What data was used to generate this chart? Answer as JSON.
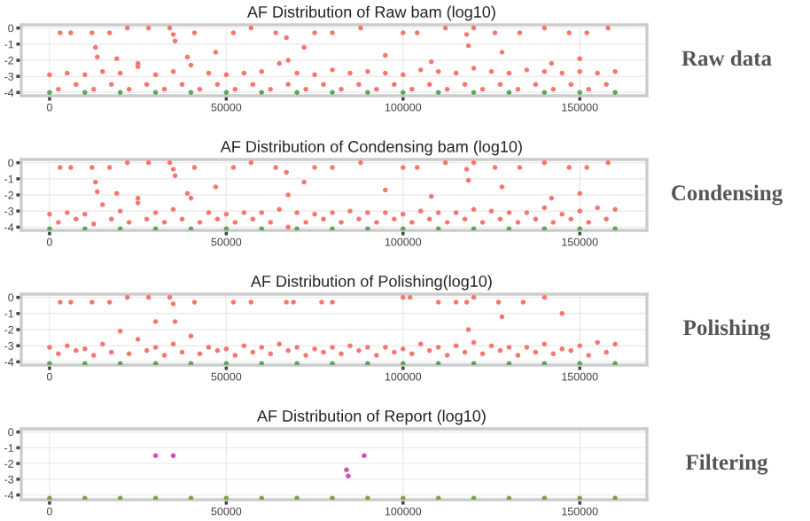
{
  "chart_data": [
    {
      "type": "scatter",
      "title": "AF Distribution of Raw bam (log10)",
      "annotations": [
        "Raw data"
      ],
      "xlim": [
        -8000,
        169000
      ],
      "ylim": [
        -4.2,
        0.2
      ],
      "xticks": [
        0,
        50000,
        100000,
        150000
      ],
      "yticks": [
        {
          "value": 0,
          "label": "0"
        },
        {
          "value": -1,
          "label": "-1"
        },
        {
          "value": -2,
          "label": "-2"
        },
        {
          "value": -3,
          "label": "-3"
        },
        {
          "value": -4,
          "label": "-4"
        }
      ],
      "grid": true,
      "marker": "circle",
      "series": [
        {
          "color": "#f8766d",
          "x": [
            0,
            5000,
            10000,
            15000,
            20000,
            25000,
            30000,
            35000,
            40000,
            45000,
            50000,
            55000,
            60000,
            65000,
            70000,
            75000,
            80000,
            85000,
            90000,
            95000,
            100000,
            105000,
            110000,
            115000,
            120000,
            125000,
            130000,
            135000,
            140000,
            145000,
            150000,
            155000,
            160000
          ],
          "values": [
            -2.9,
            -2.8,
            -2.9,
            -2.7,
            -2.8,
            -2.4,
            -2.9,
            -2.7,
            -2.3,
            -2.8,
            -2.9,
            -2.8,
            -2.7,
            -2.2,
            -2.8,
            -2.9,
            -2.6,
            -2.8,
            -2.7,
            -2.8,
            -2.9,
            -2.6,
            -2.7,
            -2.8,
            -2.5,
            -2.7,
            -2.8,
            -2.6,
            -2.7,
            -2.8,
            -2.7,
            -2.8,
            -2.7
          ]
        },
        {
          "color": "#f8766d",
          "x": [
            2500,
            7500,
            12500,
            17500,
            22500,
            27500,
            32500,
            37500,
            42500,
            47500,
            52500,
            57500,
            62500,
            67500,
            72500,
            77500,
            82500,
            87500,
            92500,
            97500,
            102500,
            107500,
            112500,
            117500,
            122500,
            127500,
            132500,
            137500,
            142500,
            147500,
            152500,
            157500
          ],
          "values": [
            -3.8,
            -3.5,
            -3.8,
            -3.5,
            -3.8,
            -3.5,
            -3.8,
            -3.5,
            -3.8,
            -3.5,
            -3.8,
            -3.5,
            -3.8,
            -3.5,
            -3.8,
            -3.5,
            -3.8,
            -3.5,
            -3.8,
            -3.5,
            -3.8,
            -3.5,
            -3.8,
            -3.5,
            -3.8,
            -3.5,
            -3.8,
            -3.5,
            -3.8,
            -3.5,
            -3.8,
            -3.5
          ]
        },
        {
          "color": "#f8766d",
          "x": [
            13000,
            13500,
            25000,
            35000,
            35500,
            39000,
            67000,
            67500,
            118000,
            118500,
            142000,
            3000,
            6000,
            12000,
            17000,
            22000,
            28000,
            34000,
            41000,
            52000,
            57000,
            64000,
            75000,
            80000,
            88000,
            100000,
            104000,
            112000,
            120000,
            126000,
            133000,
            140000,
            147000,
            152000,
            158000,
            19000,
            47000,
            72000,
            95000,
            108000,
            128000,
            150000
          ],
          "values": [
            -1.2,
            -1.8,
            -2.2,
            -0.4,
            -0.8,
            -1.8,
            -0.6,
            -2,
            -0.4,
            -1.1,
            -2.2,
            -0.3,
            -0.3,
            -0.3,
            -0.3,
            0,
            0,
            0,
            -0.3,
            -0.3,
            0,
            -0.3,
            -0.3,
            -0.3,
            0,
            -0.3,
            -0.3,
            0,
            0,
            -0.3,
            -0.3,
            0,
            -0.3,
            -0.3,
            0,
            -1.9,
            -1.5,
            -1.2,
            -1.7,
            -2.1,
            -1.5,
            -1.9
          ]
        },
        {
          "color": "#5fa55a",
          "x": [
            0,
            10000,
            20000,
            30000,
            40000,
            50000,
            60000,
            70000,
            80000,
            90000,
            100000,
            110000,
            120000,
            130000,
            140000,
            150000,
            160000
          ],
          "values": [
            -4,
            -4,
            -4,
            -4,
            -4,
            -4,
            -4,
            -4,
            -4,
            -4,
            -4,
            -4,
            -4,
            -4,
            -4,
            -4,
            -4
          ]
        }
      ]
    },
    {
      "type": "scatter",
      "title": "AF Distribution of Condensing bam (log10)",
      "annotations": [
        "Condensing"
      ],
      "xlim": [
        -8000,
        169000
      ],
      "ylim": [
        -4.2,
        0.2
      ],
      "xticks": [
        0,
        50000,
        100000,
        150000
      ],
      "yticks": [
        {
          "value": 0,
          "label": "0"
        },
        {
          "value": -1,
          "label": "-1"
        },
        {
          "value": -2,
          "label": "-2"
        },
        {
          "value": -3,
          "label": "-3"
        },
        {
          "value": -4,
          "label": "-4"
        }
      ],
      "grid": true,
      "marker": "circle",
      "series": [
        {
          "color": "#f8766d",
          "x": [
            0,
            5000,
            10000,
            15000,
            20000,
            25000,
            30000,
            35000,
            40000,
            45000,
            50000,
            55000,
            60000,
            65000,
            70000,
            75000,
            80000,
            85000,
            90000,
            95000,
            100000,
            105000,
            110000,
            115000,
            120000,
            125000,
            130000,
            135000,
            140000,
            145000,
            150000,
            155000,
            160000
          ],
          "values": [
            -3.2,
            -3.1,
            -3.2,
            -2.6,
            -3,
            -2.5,
            -3.1,
            -2.9,
            -2.2,
            -3.1,
            -3.2,
            -3.1,
            -3.1,
            -2.9,
            -3.1,
            -3.2,
            -3.1,
            -3,
            -3.1,
            -3.1,
            -3.2,
            -3,
            -3.1,
            -3.1,
            -2.9,
            -3,
            -3.1,
            -3.1,
            -2.8,
            -3.2,
            -3,
            -2.8,
            -2.9
          ]
        },
        {
          "color": "#f8766d",
          "x": [
            2500,
            7500,
            12500,
            17500,
            22500,
            27500,
            32500,
            37500,
            42500,
            47500,
            52500,
            57500,
            62500,
            67500,
            72500,
            77500,
            82500,
            87500,
            92500,
            97500,
            102500,
            107500,
            112500,
            117500,
            122500,
            127500,
            132500,
            137500,
            142500,
            147500,
            152500,
            157500
          ],
          "values": [
            -3.7,
            -3.5,
            -3.8,
            -3.5,
            -3.7,
            -3.5,
            -3.7,
            -3.5,
            -3.7,
            -3.5,
            -3.7,
            -3.5,
            -3.7,
            -4,
            -3.7,
            -3.5,
            -3.7,
            -3.5,
            -3.7,
            -3.5,
            -3.7,
            -3.5,
            -3.7,
            -3.5,
            -3.7,
            -3.5,
            -3.7,
            -3.5,
            -3.7,
            -3.5,
            -3.7,
            -3.5
          ]
        },
        {
          "color": "#f8766d",
          "x": [
            13000,
            13500,
            25000,
            35000,
            35500,
            39000,
            67000,
            67500,
            118000,
            118500,
            142000,
            3000,
            6000,
            12000,
            17000,
            22000,
            28000,
            34000,
            41000,
            52000,
            57000,
            64000,
            75000,
            80000,
            88000,
            100000,
            104000,
            112000,
            120000,
            126000,
            133000,
            140000,
            147000,
            152000,
            158000,
            19000,
            47000,
            72000,
            95000,
            108000,
            128000,
            150000
          ],
          "values": [
            -1.2,
            -1.8,
            -2.2,
            -0.4,
            -0.8,
            -1.9,
            -0.6,
            -2,
            -0.4,
            -1.1,
            -2.2,
            -0.3,
            -0.3,
            -0.3,
            -0.3,
            0,
            0,
            0,
            -0.3,
            -0.3,
            0,
            -0.3,
            -0.3,
            -0.3,
            0,
            -0.3,
            -0.3,
            0,
            0,
            -0.3,
            -0.3,
            0,
            -0.3,
            -0.3,
            0,
            -1.9,
            -1.5,
            -1.2,
            -1.7,
            -2.1,
            -1.5,
            -1.9
          ]
        },
        {
          "color": "#5fa55a",
          "x": [
            0,
            10000,
            20000,
            30000,
            40000,
            50000,
            60000,
            70000,
            80000,
            90000,
            100000,
            110000,
            120000,
            130000,
            140000,
            150000,
            160000
          ],
          "values": [
            -4.1,
            -4.1,
            -4.1,
            -4.1,
            -4.1,
            -4.1,
            -4.1,
            -4.1,
            -4.1,
            -4.1,
            -4.1,
            -4.1,
            -4.1,
            -4.1,
            -4.1,
            -4.1,
            -4.1
          ]
        }
      ]
    },
    {
      "type": "scatter",
      "title": "AF Distribution of Polishing(log10)",
      "annotations": [
        "Polishing"
      ],
      "xlim": [
        -8000,
        169000
      ],
      "ylim": [
        -4.2,
        0.2
      ],
      "xticks": [
        0,
        50000,
        100000,
        150000
      ],
      "yticks": [
        {
          "value": 0,
          "label": "0"
        },
        {
          "value": -1,
          "label": "-1"
        },
        {
          "value": -2,
          "label": "-2"
        },
        {
          "value": -3,
          "label": "-3"
        },
        {
          "value": -4,
          "label": "-4"
        }
      ],
      "grid": true,
      "marker": "circle",
      "series": [
        {
          "color": "#f8766d",
          "x": [
            0,
            5000,
            10000,
            15000,
            20000,
            25000,
            30000,
            35000,
            40000,
            45000,
            50000,
            55000,
            60000,
            65000,
            70000,
            75000,
            80000,
            85000,
            90000,
            95000,
            100000,
            105000,
            110000,
            115000,
            120000,
            125000,
            130000,
            135000,
            140000,
            145000,
            150000,
            155000,
            160000
          ],
          "values": [
            -3.1,
            -3,
            -3.2,
            -2.9,
            -2.1,
            -2.6,
            -3.1,
            -2.9,
            -2.4,
            -3.1,
            -3.2,
            -3,
            -3.1,
            -2.9,
            -3.1,
            -3.2,
            -3.1,
            -3,
            -3.1,
            -3.1,
            -3.2,
            -2.9,
            -3.1,
            -3,
            -2.8,
            -3,
            -3.1,
            -3.1,
            -2.9,
            -3.2,
            -3,
            -2.8,
            -2.9
          ]
        },
        {
          "color": "#f8766d",
          "x": [
            2500,
            7500,
            12500,
            17500,
            22500,
            27500,
            32500,
            37500,
            42500,
            47500,
            52500,
            57500,
            62500,
            67500,
            72500,
            77500,
            82500,
            87500,
            92500,
            97500,
            102500,
            107500,
            112500,
            117500,
            122500,
            127500,
            132500,
            137500,
            142500,
            147500,
            152500,
            157500
          ],
          "values": [
            -3.5,
            -3.3,
            -3.6,
            -3.4,
            -3.5,
            -3.3,
            -3.6,
            -3.4,
            -3.5,
            -3.3,
            -3.6,
            -3.4,
            -3.5,
            -3.3,
            -3.6,
            -3.4,
            -3.5,
            -3.3,
            -3.6,
            -3.4,
            -3.5,
            -3.3,
            -3.6,
            -3.4,
            -3.5,
            -3.3,
            -3.6,
            -3.4,
            -3.5,
            -3.3,
            -3.6,
            -3.4
          ]
        },
        {
          "color": "#f8766d",
          "x": [
            30000,
            35000,
            35500,
            41000,
            67000,
            118000,
            118500,
            128000,
            3000,
            6000,
            12000,
            17000,
            22000,
            28000,
            34000,
            52000,
            57000,
            69000,
            77000,
            80000,
            100000,
            102000,
            110000,
            115000,
            120000,
            127000,
            134000,
            140000,
            145000
          ],
          "values": [
            -1.5,
            -0.4,
            -1.5,
            -0.3,
            -0.3,
            -0.3,
            -2,
            -1.2,
            -0.3,
            -0.3,
            -0.3,
            -0.3,
            0,
            0,
            0,
            -0.3,
            -0.3,
            -0.3,
            -0.3,
            -0.3,
            0,
            0,
            -0.3,
            -0.3,
            0,
            -0.3,
            -0.3,
            0,
            -1
          ]
        },
        {
          "color": "#5fa55a",
          "x": [
            0,
            10000,
            20000,
            30000,
            40000,
            50000,
            60000,
            70000,
            80000,
            90000,
            100000,
            110000,
            120000,
            130000,
            140000,
            150000,
            160000
          ],
          "values": [
            -4.1,
            -4.1,
            -4.1,
            -4.1,
            -4.1,
            -4.1,
            -4.1,
            -4.1,
            -4.1,
            -4.1,
            -4.1,
            -4.1,
            -4.1,
            -4.1,
            -4.1,
            -4.1,
            -4.1
          ]
        }
      ]
    },
    {
      "type": "scatter",
      "title": "AF Distribution of Report (log10)",
      "annotations": [
        "Filtering"
      ],
      "xlim": [
        -8000,
        169000
      ],
      "ylim": [
        -4.3,
        0.2
      ],
      "xticks": [
        0,
        50000,
        100000,
        150000
      ],
      "yticks": [
        {
          "value": 0,
          "label": "0"
        },
        {
          "value": -1,
          "label": "-1"
        },
        {
          "value": -2,
          "label": "-2"
        },
        {
          "value": -3,
          "label": "-3"
        },
        {
          "value": -4,
          "label": "-4"
        }
      ],
      "grid": true,
      "marker": "circle",
      "series": [
        {
          "color": "#d44fb5",
          "x": [
            30000,
            35000,
            84000,
            84500,
            89000
          ],
          "values": [
            -1.5,
            -1.5,
            -2.4,
            -2.8,
            -1.5
          ]
        },
        {
          "color": "#7aa348",
          "x": [
            0,
            10000,
            20000,
            30000,
            40000,
            50000,
            60000,
            70000,
            80000,
            90000,
            100000,
            110000,
            120000,
            130000,
            140000,
            150000,
            160000
          ],
          "values": [
            -4.2,
            -4.2,
            -4.2,
            -4.2,
            -4.2,
            -4.2,
            -4.2,
            -4.2,
            -4.2,
            -4.2,
            -4.2,
            -4.2,
            -4.2,
            -4.2,
            -4.2,
            -4.2,
            -4.2
          ]
        }
      ]
    }
  ]
}
